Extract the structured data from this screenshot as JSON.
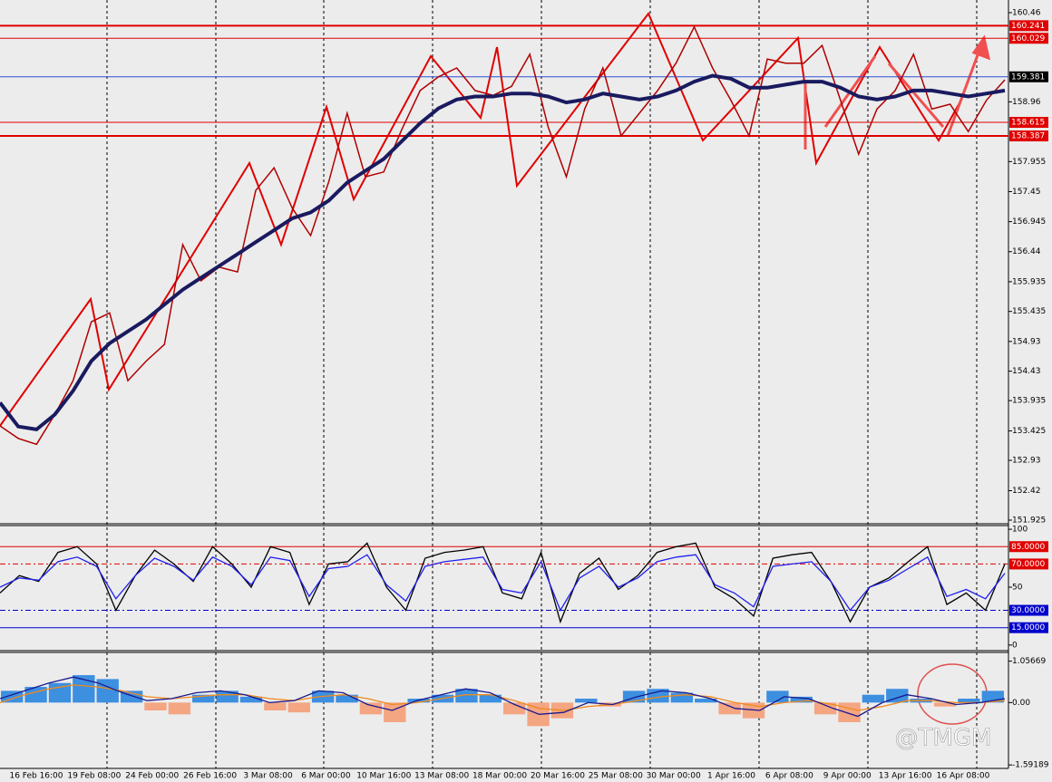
{
  "chart_data": [
    {
      "type": "line",
      "ylim": [
        151.864,
        160.673
      ],
      "yticks": [
        160.46,
        158.96,
        157.955,
        157.45,
        156.945,
        156.44,
        155.935,
        155.435,
        154.93,
        154.43,
        153.935,
        153.425,
        152.93,
        152.42,
        151.925
      ],
      "levels": [
        {
          "value": 160.241,
          "color": "#e00000"
        },
        {
          "value": 160.029,
          "color": "#e00000"
        },
        {
          "value": 159.381,
          "color": "#3050d0"
        },
        {
          "value": 158.615,
          "color": "#e00000"
        },
        {
          "value": 158.387,
          "color": "#e00000"
        }
      ],
      "series": [
        {
          "color": "#b00000",
          "values": [
            153.51,
            153.3,
            153.2,
            153.7,
            154.27,
            155.26,
            155.41,
            154.27,
            154.6,
            154.88,
            156.56,
            155.95,
            156.18,
            156.1,
            157.47,
            157.85,
            157.17,
            156.71,
            157.62,
            158.77,
            157.7,
            157.78,
            158.5,
            159.15,
            159.38,
            159.53,
            159.15,
            159.07,
            159.22,
            159.76,
            158.54,
            157.7,
            158.84,
            159.53,
            158.39,
            158.77,
            159.15,
            159.61,
            160.22,
            159.53,
            158.99,
            158.39,
            159.68,
            159.61,
            159.61,
            159.91,
            158.99,
            158.08,
            158.84,
            159.15,
            159.76,
            158.84,
            158.92,
            158.46,
            158.99,
            159.33
          ]
        },
        {
          "color": "#1a1a60",
          "values": [
            153.9,
            153.5,
            153.45,
            153.7,
            154.1,
            154.6,
            154.9,
            155.1,
            155.3,
            155.55,
            155.8,
            156.0,
            156.2,
            156.4,
            156.6,
            156.8,
            157.0,
            157.1,
            157.3,
            157.6,
            157.8,
            158.0,
            158.3,
            158.6,
            158.85,
            159.0,
            159.05,
            159.05,
            159.1,
            159.1,
            159.05,
            158.95,
            159.0,
            159.1,
            159.05,
            159.0,
            159.05,
            159.15,
            159.3,
            159.4,
            159.35,
            159.2,
            159.2,
            159.25,
            159.3,
            159.3,
            159.2,
            159.05,
            159.0,
            159.05,
            159.15,
            159.15,
            159.1,
            159.05,
            159.1,
            159.15
          ]
        }
      ]
    },
    {
      "type": "line",
      "ylim": [
        -4.8,
        103.2
      ],
      "yticks": [
        100,
        50,
        0
      ],
      "levels": [
        {
          "value": 85,
          "label": "85.0000",
          "color": "#e00000"
        },
        {
          "value": 70,
          "label": "70.0000",
          "color": "#e00000"
        },
        {
          "value": 30,
          "label": "30.0000",
          "color": "#0000cc"
        },
        {
          "value": 15,
          "label": "15.0000",
          "color": "#0000cc"
        }
      ],
      "series": [
        {
          "color": "#000000",
          "values": [
            45,
            60,
            55,
            80,
            85,
            70,
            30,
            60,
            82,
            70,
            55,
            85,
            70,
            50,
            85,
            80,
            35,
            70,
            72,
            88,
            50,
            30,
            75,
            80,
            82,
            85,
            45,
            40,
            80,
            20,
            62,
            75,
            48,
            60,
            80,
            85,
            88,
            50,
            40,
            25,
            75,
            78,
            80,
            55,
            20,
            50,
            58,
            72,
            85,
            35,
            45,
            30,
            70
          ]
        },
        {
          "color": "#2020ee",
          "values": [
            50,
            58,
            56,
            72,
            76,
            68,
            40,
            60,
            75,
            68,
            56,
            76,
            68,
            52,
            76,
            73,
            42,
            66,
            68,
            78,
            52,
            38,
            68,
            72,
            74,
            76,
            48,
            45,
            72,
            30,
            58,
            68,
            50,
            58,
            72,
            76,
            78,
            52,
            45,
            33,
            68,
            70,
            72,
            55,
            30,
            50,
            56,
            66,
            76,
            42,
            48,
            40,
            62
          ]
        }
      ]
    },
    {
      "type": "macd",
      "ylim": [
        -1.68,
        1.28
      ],
      "yticks": [
        {
          "value": 1.05669,
          "label": "1.05669"
        },
        {
          "value": 0,
          "label": "0.00"
        },
        {
          "value": -1.59189,
          "label": "-1.59189"
        }
      ],
      "colors": [
        "#3d8fe0",
        "#f4a582"
      ],
      "values": [
        0.3,
        0.4,
        0.5,
        0.7,
        0.6,
        0.3,
        -0.2,
        -0.3,
        0.2,
        0.3,
        0.15,
        -0.2,
        -0.25,
        0.3,
        0.2,
        -0.3,
        -0.5,
        0.1,
        0.2,
        0.35,
        0.2,
        -0.3,
        -0.6,
        -0.4,
        0.1,
        -0.1,
        0.3,
        0.35,
        0.25,
        0.1,
        -0.3,
        -0.4,
        0.3,
        0.15,
        -0.3,
        -0.5,
        0.2,
        0.35,
        0.1,
        -0.1,
        0.1,
        0.3
      ],
      "series": [
        {
          "color": "#f08a1c",
          "values": [
            0.0,
            0.2,
            0.35,
            0.45,
            0.4,
            0.3,
            0.15,
            0.1,
            0.15,
            0.2,
            0.2,
            0.1,
            0.05,
            0.15,
            0.2,
            0.1,
            -0.05,
            0.0,
            0.1,
            0.2,
            0.2,
            0.05,
            -0.15,
            -0.2,
            -0.1,
            -0.05,
            0.05,
            0.15,
            0.2,
            0.15,
            0.0,
            -0.1,
            0.0,
            0.05,
            -0.05,
            -0.2,
            -0.1,
            0.05,
            0.05,
            0.0,
            0.0,
            0.05
          ]
        },
        {
          "color": "#1a1a90",
          "values": [
            0.1,
            0.3,
            0.5,
            0.65,
            0.5,
            0.25,
            0.05,
            0.1,
            0.25,
            0.3,
            0.2,
            0.0,
            0.05,
            0.3,
            0.25,
            -0.05,
            -0.2,
            0.05,
            0.2,
            0.35,
            0.25,
            -0.05,
            -0.3,
            -0.25,
            0.0,
            -0.05,
            0.15,
            0.3,
            0.25,
            0.1,
            -0.15,
            -0.2,
            0.15,
            0.1,
            -0.15,
            -0.35,
            0.0,
            0.2,
            0.1,
            -0.05,
            0.0,
            0.1
          ]
        }
      ],
      "x_tick_labels": [
        "16 Feb 16:00",
        "19 Feb 08:00",
        "24 Feb 00:00",
        "26 Feb 16:00",
        "3 Mar 08:00",
        "6 Mar 00:00",
        "10 Mar 16:00",
        "13 Mar 08:00",
        "18 Mar 00:00",
        "20 Mar 16:00",
        "25 Mar 08:00",
        "30 Mar 00:00",
        "1 Apr 16:00",
        "6 Apr 08:00",
        "9 Apr 00:00",
        "13 Apr 16:00",
        "16 Apr 08:00"
      ],
      "watermark": "@TMGM"
    }
  ]
}
